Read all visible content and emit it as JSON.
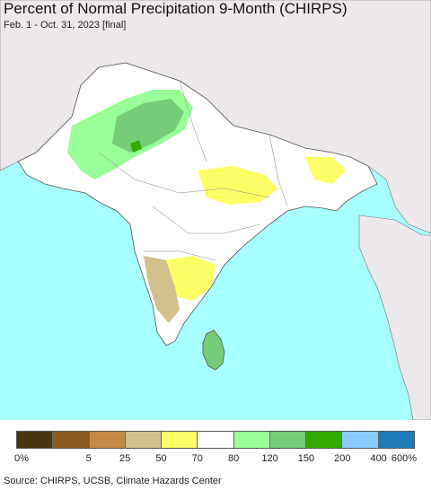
{
  "header": {
    "title": "Percent of Normal Precipitation 9-Month (CHIRPS)",
    "subtitle": "Feb. 1 - Oct. 31, 2023 [final]"
  },
  "legend": {
    "colors": [
      "#4a3410",
      "#8b5a1e",
      "#c48a45",
      "#d4c08a",
      "#ffff66",
      "#ffffff",
      "#99ff99",
      "#77cc77",
      "#33aa00",
      "#88ccff",
      "#1f7ab8"
    ],
    "labels": [
      "0%",
      "5",
      "25",
      "50",
      "70",
      "80",
      "120",
      "150",
      "200",
      "400",
      "600%"
    ]
  },
  "footer": {
    "source": "Source: CHIRPS, UCSB, Climate Hazards Center"
  },
  "map_colors": {
    "sea": "#a8ffff",
    "outside_land": "#ece8ec",
    "study_land": "#ffffff",
    "borders": "#666666"
  }
}
